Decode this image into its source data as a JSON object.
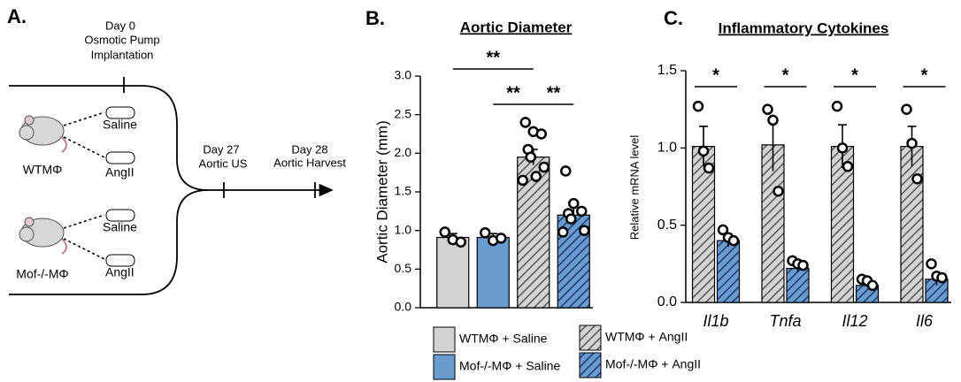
{
  "diagram": {
    "panel_label": "A.",
    "day0": "Day 0",
    "day0_line1": "Osmotic Pump",
    "day0_line2": "Implantation",
    "day27": "Day 27",
    "day27_step": "Aortic US",
    "day28": "Day 28",
    "day28_step": "Aortic Harvest",
    "groups": [
      {
        "label": "WTMΦ",
        "pumps": [
          "Saline",
          "AngII"
        ]
      },
      {
        "label": "Mof-/-MΦ",
        "pumps": [
          "Saline",
          "AngII"
        ]
      }
    ]
  },
  "chart_data": [
    {
      "type": "bar",
      "panel_label": "B.",
      "title": "Aortic Diameter",
      "y_label": "Aortic Diameter (mm)",
      "ylim": [
        0,
        3
      ],
      "yticks": [
        {
          "value": 0,
          "label": "0.0"
        },
        0.5,
        {
          "value": 1,
          "label": "1.0"
        },
        1.5,
        {
          "value": 2,
          "label": "2.0"
        },
        2.5,
        {
          "value": 3,
          "label": "3.0"
        }
      ],
      "significance": [
        "**",
        "**",
        "**"
      ],
      "series": [
        {
          "name": "WTMΦ + Saline",
          "color": "#d3d3d3",
          "hatch": false,
          "values": [
            0.91
          ],
          "errors": [
            0.05
          ],
          "points": [
            [
              0.98,
              0.88,
              0.85
            ]
          ]
        },
        {
          "name": "Mof-/-MΦ + Saline",
          "color": "#6a9bd1",
          "hatch": false,
          "values": [
            0.91
          ],
          "errors": [
            0.05
          ],
          "points": [
            [
              0.97,
              0.87,
              0.9
            ]
          ]
        },
        {
          "name": "WTMΦ + AngII",
          "color": "#d3d3d3",
          "hatch": true,
          "values": [
            1.95
          ],
          "errors": [
            0.1
          ],
          "points": [
            [
              2.4,
              2.28,
              2.25,
              2.05,
              1.95,
              1.82,
              1.65,
              1.7
            ]
          ]
        },
        {
          "name": "Mof-/-MΦ + AngII",
          "color": "#6a9bd1",
          "hatch": true,
          "values": [
            1.2
          ],
          "errors": [
            0.12
          ],
          "points": [
            [
              1.77,
              1.35,
              1.25,
              1.22,
              1.15,
              1.0,
              0.98
            ]
          ]
        }
      ]
    },
    {
      "type": "bar",
      "panel_label": "C.",
      "title": "Inflammatory Cytokines",
      "y_label": "Relative mRNA level",
      "categories": [
        "Il1b",
        "Tnfa",
        "Il12",
        "Il6"
      ],
      "ylim": [
        0,
        1.5
      ],
      "yticks": [
        {
          "value": 0,
          "label": "0.0"
        },
        0.5,
        {
          "value": 1,
          "label": "1.0"
        },
        1.5
      ],
      "significance": [
        "*",
        "*",
        "*",
        "*"
      ],
      "series": [
        {
          "color": "#d3d3d3",
          "hatch": true,
          "values": [
            1.01,
            1.02,
            1.01,
            1.01
          ],
          "errors": [
            0.13,
            0.17,
            0.14,
            0.13
          ],
          "points": [
            [
              1.27,
              0.98,
              0.87
            ],
            [
              1.25,
              1.18,
              0.72
            ],
            [
              1.27,
              1.0,
              0.88
            ],
            [
              1.25,
              1.03,
              0.8
            ]
          ]
        },
        {
          "color": "#6a9bd1",
          "hatch": true,
          "values": [
            0.4,
            0.22,
            0.11,
            0.15
          ],
          "errors": [
            0.04,
            0.02,
            0.01,
            0.04
          ],
          "points": [
            [
              0.47,
              0.42,
              0.4
            ],
            [
              0.27,
              0.25,
              0.24
            ],
            [
              0.15,
              0.14,
              0.11
            ],
            [
              0.25,
              0.17,
              0.16
            ]
          ]
        }
      ]
    }
  ]
}
